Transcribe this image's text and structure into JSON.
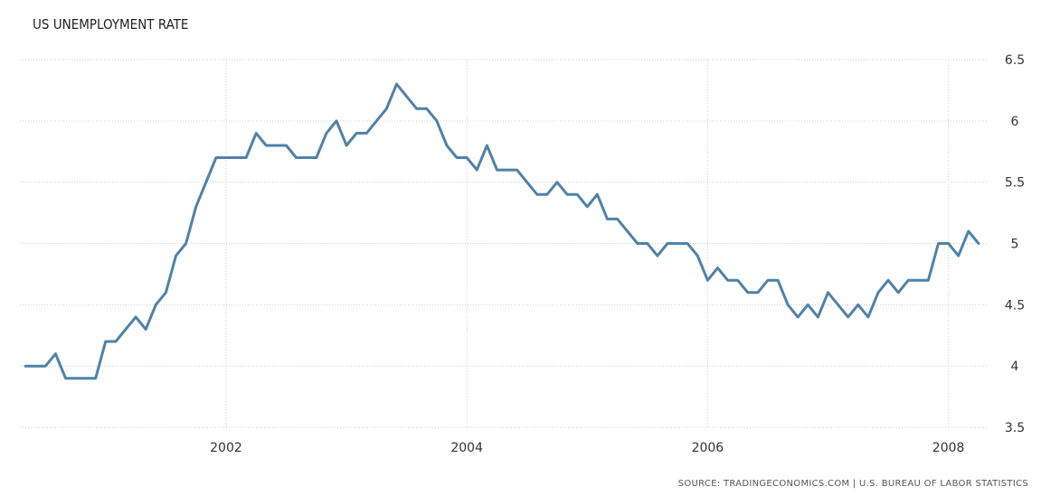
{
  "chart_data": {
    "type": "line",
    "title": "US UNEMPLOYMENT RATE",
    "source": "SOURCE: TRADINGECONOMICS.COM | U.S. BUREAU OF LABOR STATISTICS",
    "xlabel": "",
    "ylabel": "",
    "x_ticks": [
      "2002",
      "2004",
      "2006",
      "2008"
    ],
    "y_ticks": [
      "3.5",
      "4",
      "4.5",
      "5",
      "5.5",
      "6",
      "6.5"
    ],
    "ylim": [
      3.5,
      6.5
    ],
    "xlim": [
      "2000-05",
      "2008-05"
    ],
    "grid": true,
    "line_color": "#4f82a8",
    "series": [
      {
        "x": [
          "2000-05",
          "2000-06",
          "2000-07",
          "2000-08",
          "2000-09",
          "2000-10",
          "2000-11",
          "2000-12",
          "2001-01",
          "2001-02",
          "2001-03",
          "2001-04",
          "2001-05",
          "2001-06",
          "2001-07",
          "2001-08",
          "2001-09",
          "2001-10",
          "2001-11",
          "2001-12",
          "2002-01",
          "2002-02",
          "2002-03",
          "2002-04",
          "2002-05",
          "2002-06",
          "2002-07",
          "2002-08",
          "2002-09",
          "2002-10",
          "2002-11",
          "2002-12",
          "2003-01",
          "2003-02",
          "2003-03",
          "2003-04",
          "2003-05",
          "2003-06",
          "2003-07",
          "2003-08",
          "2003-09",
          "2003-10",
          "2003-11",
          "2003-12",
          "2004-01",
          "2004-02",
          "2004-03",
          "2004-04",
          "2004-05",
          "2004-06",
          "2004-07",
          "2004-08",
          "2004-09",
          "2004-10",
          "2004-11",
          "2004-12",
          "2005-01",
          "2005-02",
          "2005-03",
          "2005-04",
          "2005-05",
          "2005-06",
          "2005-07",
          "2005-08",
          "2005-09",
          "2005-10",
          "2005-11",
          "2005-12",
          "2006-01",
          "2006-02",
          "2006-03",
          "2006-04",
          "2006-05",
          "2006-06",
          "2006-07",
          "2006-08",
          "2006-09",
          "2006-10",
          "2006-11",
          "2006-12",
          "2007-01",
          "2007-02",
          "2007-03",
          "2007-04",
          "2007-05",
          "2007-06",
          "2007-07",
          "2007-08",
          "2007-09",
          "2007-10",
          "2007-11",
          "2007-12",
          "2008-01",
          "2008-02",
          "2008-03",
          "2008-04"
        ],
        "values": [
          4.0,
          4.0,
          4.0,
          4.1,
          3.9,
          3.9,
          3.9,
          3.9,
          4.2,
          4.2,
          4.3,
          4.4,
          4.3,
          4.5,
          4.6,
          4.9,
          5.0,
          5.3,
          5.5,
          5.7,
          5.7,
          5.7,
          5.7,
          5.9,
          5.8,
          5.8,
          5.8,
          5.7,
          5.7,
          5.7,
          5.9,
          6.0,
          5.8,
          5.9,
          5.9,
          6.0,
          6.1,
          6.3,
          6.2,
          6.1,
          6.1,
          6.0,
          5.8,
          5.7,
          5.7,
          5.6,
          5.8,
          5.6,
          5.6,
          5.6,
          5.5,
          5.4,
          5.4,
          5.5,
          5.4,
          5.4,
          5.3,
          5.4,
          5.2,
          5.2,
          5.1,
          5.0,
          5.0,
          4.9,
          5.0,
          5.0,
          5.0,
          4.9,
          4.7,
          4.8,
          4.7,
          4.7,
          4.6,
          4.6,
          4.7,
          4.7,
          4.5,
          4.4,
          4.5,
          4.4,
          4.6,
          4.5,
          4.4,
          4.5,
          4.4,
          4.6,
          4.7,
          4.6,
          4.7,
          4.7,
          4.7,
          5.0,
          5.0,
          4.9,
          5.1,
          5.0
        ]
      }
    ]
  }
}
